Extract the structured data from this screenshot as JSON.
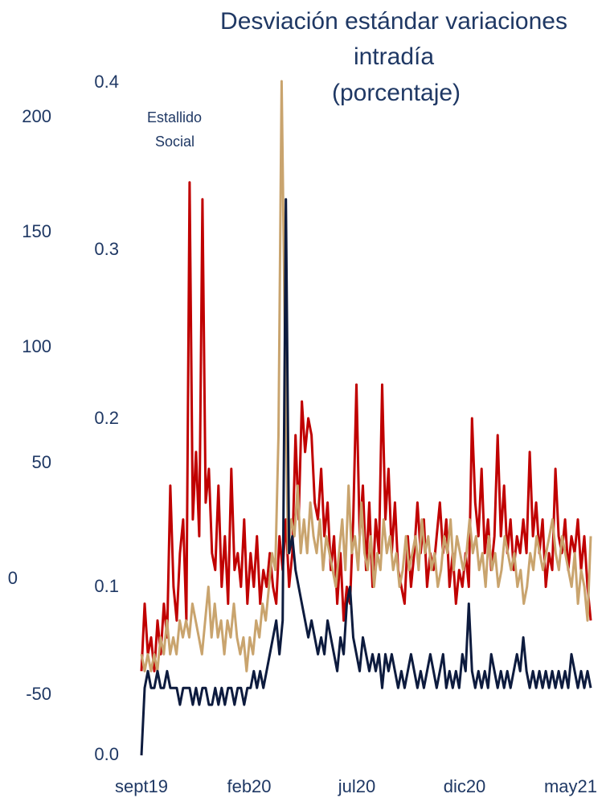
{
  "chart_data": {
    "type": "line",
    "title_lines": [
      "Desviación estándar variaciones",
      "intradía",
      "(porcentaje)"
    ],
    "y_left_ticks": [
      "200",
      "150",
      "100",
      "50",
      "0",
      "-50"
    ],
    "y_right_ticks": [
      "0.4",
      "0.3",
      "0.2",
      "0.1",
      "0.0"
    ],
    "ylim": [
      0,
      0.4
    ],
    "x_ticks": [
      "sept19",
      "feb20",
      "jul20",
      "dic20",
      "may21"
    ],
    "annotation": [
      "Estallido",
      "Social"
    ],
    "series": [
      {
        "color": "#c00000",
        "values": [
          0.05,
          0.09,
          0.06,
          0.07,
          0.05,
          0.08,
          0.06,
          0.09,
          0.07,
          0.16,
          0.1,
          0.08,
          0.12,
          0.14,
          0.08,
          0.34,
          0.14,
          0.18,
          0.13,
          0.33,
          0.15,
          0.17,
          0.12,
          0.11,
          0.16,
          0.1,
          0.13,
          0.09,
          0.17,
          0.11,
          0.12,
          0.1,
          0.14,
          0.09,
          0.12,
          0.1,
          0.13,
          0.09,
          0.11,
          0.1,
          0.12,
          0.1,
          0.09,
          0.13,
          0.11,
          0.14,
          0.1,
          0.12,
          0.19,
          0.14,
          0.21,
          0.18,
          0.2,
          0.19,
          0.15,
          0.14,
          0.17,
          0.13,
          0.15,
          0.11,
          0.13,
          0.09,
          0.12,
          0.08,
          0.1,
          0.09,
          0.14,
          0.22,
          0.13,
          0.16,
          0.11,
          0.15,
          0.1,
          0.14,
          0.12,
          0.22,
          0.14,
          0.17,
          0.12,
          0.15,
          0.11,
          0.1,
          0.09,
          0.13,
          0.1,
          0.12,
          0.15,
          0.12,
          0.14,
          0.1,
          0.12,
          0.11,
          0.13,
          0.15,
          0.12,
          0.14,
          0.1,
          0.12,
          0.09,
          0.11,
          0.1,
          0.12,
          0.1,
          0.2,
          0.15,
          0.13,
          0.17,
          0.12,
          0.14,
          0.11,
          0.13,
          0.19,
          0.13,
          0.16,
          0.12,
          0.14,
          0.11,
          0.13,
          0.12,
          0.14,
          0.12,
          0.18,
          0.13,
          0.15,
          0.12,
          0.14,
          0.1,
          0.12,
          0.11,
          0.17,
          0.13,
          0.12,
          0.14,
          0.11,
          0.13,
          0.12,
          0.14,
          0.11,
          0.13,
          0.1,
          0.08
        ]
      },
      {
        "color": "#c9a46e",
        "values": [
          0.06,
          0.05,
          0.06,
          0.05,
          0.06,
          0.05,
          0.07,
          0.06,
          0.08,
          0.06,
          0.07,
          0.06,
          0.08,
          0.07,
          0.08,
          0.07,
          0.09,
          0.08,
          0.07,
          0.06,
          0.08,
          0.1,
          0.07,
          0.09,
          0.07,
          0.08,
          0.06,
          0.08,
          0.07,
          0.09,
          0.07,
          0.06,
          0.07,
          0.05,
          0.07,
          0.06,
          0.08,
          0.07,
          0.09,
          0.08,
          0.1,
          0.12,
          0.11,
          0.19,
          0.45,
          0.25,
          0.12,
          0.14,
          0.13,
          0.16,
          0.12,
          0.14,
          0.12,
          0.15,
          0.13,
          0.12,
          0.14,
          0.11,
          0.13,
          0.12,
          0.11,
          0.1,
          0.12,
          0.14,
          0.11,
          0.16,
          0.12,
          0.13,
          0.11,
          0.15,
          0.12,
          0.11,
          0.13,
          0.1,
          0.12,
          0.11,
          0.14,
          0.12,
          0.13,
          0.11,
          0.12,
          0.1,
          0.11,
          0.13,
          0.11,
          0.12,
          0.13,
          0.11,
          0.14,
          0.12,
          0.13,
          0.11,
          0.12,
          0.1,
          0.11,
          0.13,
          0.12,
          0.14,
          0.11,
          0.13,
          0.12,
          0.11,
          0.12,
          0.14,
          0.12,
          0.13,
          0.11,
          0.12,
          0.1,
          0.13,
          0.11,
          0.12,
          0.1,
          0.11,
          0.13,
          0.12,
          0.11,
          0.12,
          0.1,
          0.11,
          0.09,
          0.1,
          0.12,
          0.11,
          0.13,
          0.12,
          0.11,
          0.12,
          0.13,
          0.14,
          0.12,
          0.11,
          0.13,
          0.12,
          0.11,
          0.1,
          0.12,
          0.09,
          0.11,
          0.1,
          0.08,
          0.13
        ]
      },
      {
        "color": "#0d1b3e",
        "values": [
          0.0,
          0.04,
          0.05,
          0.04,
          0.04,
          0.05,
          0.04,
          0.04,
          0.05,
          0.04,
          0.04,
          0.04,
          0.03,
          0.04,
          0.04,
          0.04,
          0.03,
          0.04,
          0.03,
          0.04,
          0.04,
          0.03,
          0.03,
          0.04,
          0.03,
          0.04,
          0.03,
          0.04,
          0.04,
          0.03,
          0.04,
          0.04,
          0.03,
          0.04,
          0.04,
          0.05,
          0.04,
          0.05,
          0.04,
          0.05,
          0.06,
          0.07,
          0.08,
          0.06,
          0.08,
          0.33,
          0.12,
          0.13,
          0.11,
          0.1,
          0.09,
          0.08,
          0.07,
          0.08,
          0.07,
          0.06,
          0.07,
          0.06,
          0.08,
          0.07,
          0.06,
          0.05,
          0.07,
          0.06,
          0.09,
          0.1,
          0.07,
          0.06,
          0.05,
          0.07,
          0.06,
          0.05,
          0.06,
          0.05,
          0.06,
          0.04,
          0.06,
          0.05,
          0.06,
          0.05,
          0.04,
          0.05,
          0.04,
          0.05,
          0.06,
          0.05,
          0.04,
          0.05,
          0.04,
          0.05,
          0.06,
          0.05,
          0.04,
          0.05,
          0.06,
          0.04,
          0.05,
          0.04,
          0.05,
          0.04,
          0.06,
          0.05,
          0.09,
          0.05,
          0.04,
          0.05,
          0.04,
          0.05,
          0.04,
          0.06,
          0.05,
          0.04,
          0.05,
          0.04,
          0.05,
          0.04,
          0.05,
          0.06,
          0.05,
          0.07,
          0.05,
          0.04,
          0.05,
          0.04,
          0.05,
          0.04,
          0.05,
          0.04,
          0.05,
          0.04,
          0.05,
          0.04,
          0.05,
          0.04,
          0.06,
          0.05,
          0.04,
          0.05,
          0.04,
          0.05,
          0.04
        ]
      }
    ]
  }
}
